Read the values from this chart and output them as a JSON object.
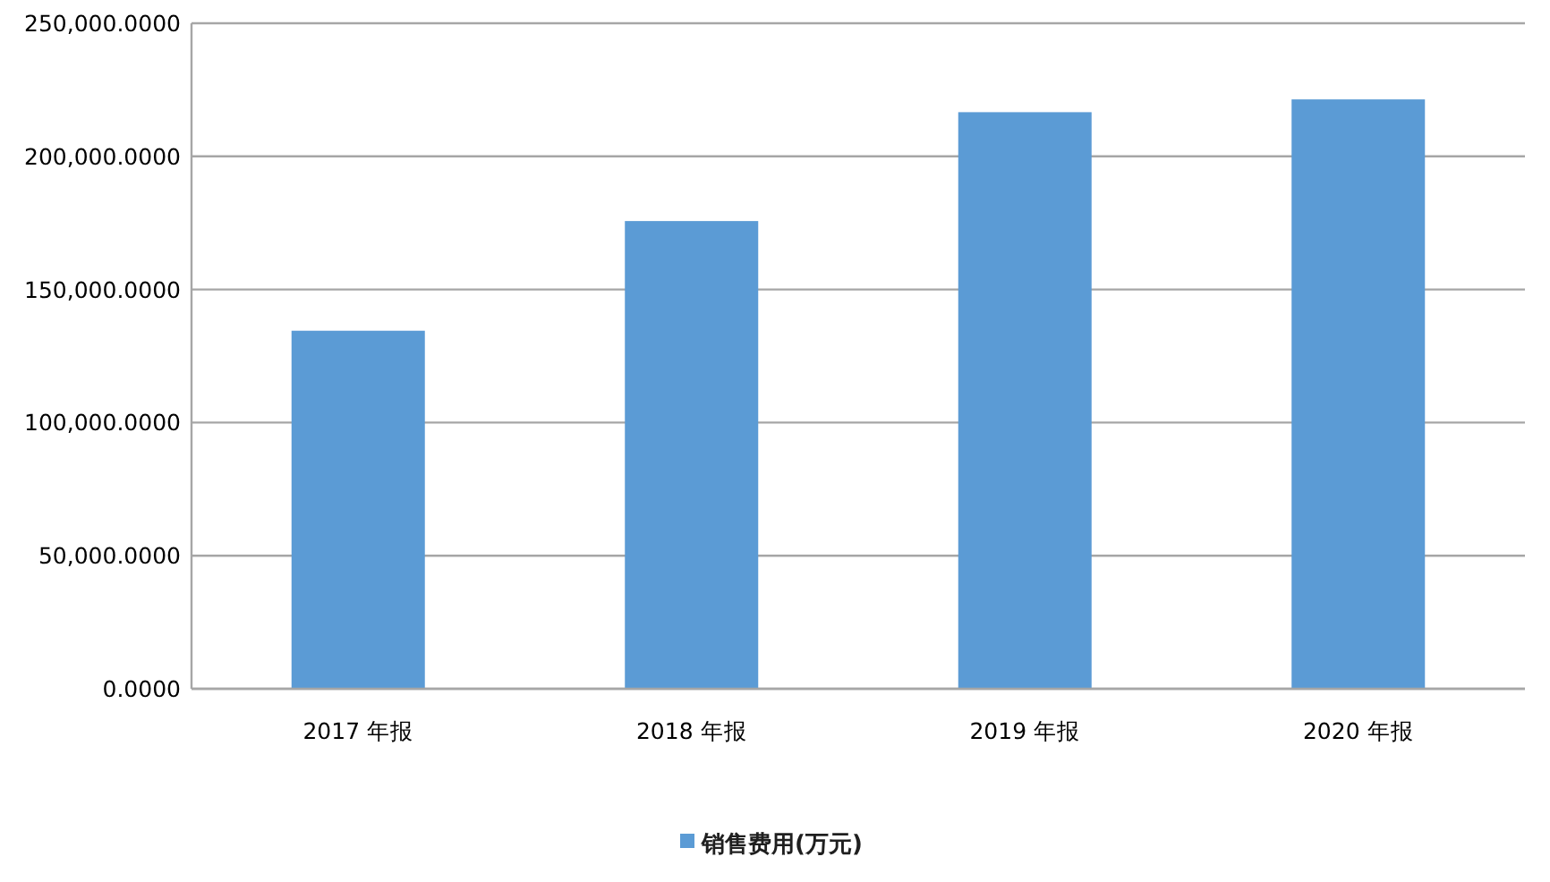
{
  "chart_data": {
    "type": "bar",
    "categories": [
      "2017 年报",
      "2018 年报",
      "2019 年报",
      "2020 年报"
    ],
    "series": [
      {
        "name": "销售费用(万元)",
        "color": "#5b9bd5",
        "values": [
          134500,
          175700,
          216600,
          221400
        ]
      }
    ],
    "ylim": [
      0,
      250000
    ],
    "yticks": [
      {
        "value": 0,
        "label": "0.0000"
      },
      {
        "value": 50000,
        "label": "50,000.0000"
      },
      {
        "value": 100000,
        "label": "100,000.0000"
      },
      {
        "value": 150000,
        "label": "150,000.0000"
      },
      {
        "value": 200000,
        "label": "200,000.0000"
      },
      {
        "value": 250000,
        "label": "250,000.0000"
      }
    ],
    "grid": "y",
    "legend": "bottom"
  }
}
